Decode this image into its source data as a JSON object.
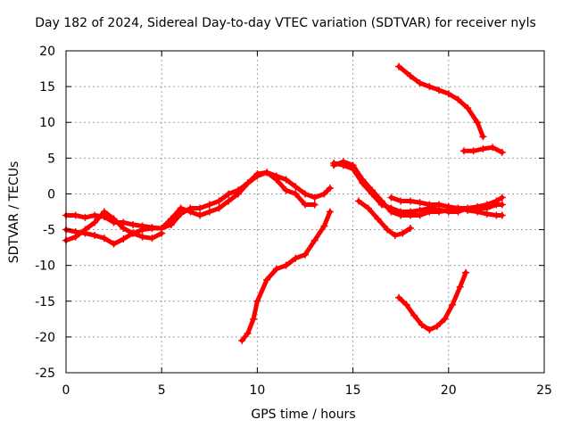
{
  "chart_data": {
    "type": "line",
    "title": "Day 182 of 2024, Sidereal Day-to-day VTEC variation (SDTVAR) for receiver nyls",
    "xlabel": "GPS time / hours",
    "ylabel": "SDTVAR / TECUs",
    "xlim": [
      0,
      25
    ],
    "ylim": [
      -25,
      20
    ],
    "xticks": [
      0,
      5,
      10,
      15,
      20,
      25
    ],
    "yticks": [
      -25,
      -20,
      -15,
      -10,
      -5,
      0,
      5,
      10,
      15,
      20
    ],
    "grid": true,
    "color": "#ff0000",
    "series": [
      {
        "points": [
          [
            0.0,
            -3.0
          ],
          [
            0.5,
            -3.0
          ],
          [
            1.0,
            -3.3
          ],
          [
            1.5,
            -3.0
          ],
          [
            2.0,
            -3.2
          ],
          [
            2.5,
            -4.0
          ],
          [
            3.0,
            -4.0
          ],
          [
            3.5,
            -4.3
          ],
          [
            4.0,
            -4.5
          ],
          [
            4.5,
            -4.7
          ],
          [
            5.0,
            -4.8
          ],
          [
            5.5,
            -4.3
          ],
          [
            6.0,
            -2.8
          ],
          [
            6.5,
            -2.0
          ],
          [
            7.0,
            -2.0
          ],
          [
            7.5,
            -1.5
          ],
          [
            8.0,
            -1.0
          ],
          [
            8.5,
            0.0
          ],
          [
            9.0,
            0.5
          ],
          [
            9.5,
            1.5
          ],
          [
            10.0,
            2.5
          ],
          [
            10.5,
            3.0
          ],
          [
            11.0,
            2.5
          ],
          [
            11.5,
            2.0
          ],
          [
            12.0,
            1.0
          ],
          [
            12.5,
            0.0
          ],
          [
            13.0,
            -0.5
          ],
          [
            13.5,
            0.0
          ],
          [
            13.8,
            0.8
          ]
        ]
      },
      {
        "points": [
          [
            0.0,
            -6.5
          ],
          [
            0.5,
            -6.0
          ],
          [
            1.0,
            -5.0
          ],
          [
            1.5,
            -4.0
          ],
          [
            2.0,
            -2.5
          ],
          [
            2.5,
            -3.5
          ],
          [
            3.0,
            -4.8
          ],
          [
            3.5,
            -5.5
          ],
          [
            4.0,
            -6.0
          ],
          [
            4.5,
            -6.2
          ],
          [
            5.0,
            -5.5
          ]
        ]
      },
      {
        "points": [
          [
            0.0,
            -5.0
          ],
          [
            0.5,
            -5.3
          ],
          [
            1.0,
            -5.5
          ],
          [
            1.5,
            -5.8
          ],
          [
            2.0,
            -6.2
          ],
          [
            2.5,
            -7.0
          ],
          [
            3.0,
            -6.3
          ],
          [
            3.5,
            -5.5
          ],
          [
            4.0,
            -5.0
          ],
          [
            4.5,
            -4.8
          ],
          [
            5.0,
            -4.8
          ]
        ]
      },
      {
        "points": [
          [
            5.0,
            -4.8
          ],
          [
            5.5,
            -3.5
          ],
          [
            6.0,
            -2.0
          ],
          [
            6.5,
            -2.5
          ],
          [
            7.0,
            -3.0
          ],
          [
            7.5,
            -2.5
          ],
          [
            8.0,
            -2.0
          ],
          [
            8.5,
            -1.0
          ],
          [
            9.0,
            0.0
          ],
          [
            9.5,
            1.5
          ],
          [
            10.0,
            2.8
          ],
          [
            10.5,
            3.0
          ],
          [
            11.0,
            2.0
          ],
          [
            11.5,
            0.5
          ],
          [
            12.0,
            0.0
          ],
          [
            12.5,
            -1.5
          ],
          [
            13.0,
            -1.5
          ]
        ]
      },
      {
        "points": [
          [
            9.2,
            -20.5
          ],
          [
            9.5,
            -19.5
          ],
          [
            9.8,
            -17.5
          ],
          [
            10.0,
            -15.0
          ],
          [
            10.5,
            -12.0
          ],
          [
            11.0,
            -10.5
          ],
          [
            11.5,
            -10.0
          ],
          [
            12.0,
            -9.0
          ],
          [
            12.5,
            -8.5
          ],
          [
            13.0,
            -6.5
          ],
          [
            13.5,
            -4.5
          ],
          [
            13.8,
            -2.5
          ]
        ]
      },
      {
        "points": [
          [
            14.0,
            4.0
          ],
          [
            14.5,
            4.5
          ],
          [
            15.0,
            4.0
          ],
          [
            15.5,
            2.0
          ],
          [
            16.0,
            0.5
          ],
          [
            16.5,
            -1.0
          ],
          [
            17.0,
            -2.5
          ],
          [
            17.5,
            -3.0
          ],
          [
            18.0,
            -3.0
          ],
          [
            18.5,
            -3.0
          ],
          [
            19.0,
            -2.5
          ],
          [
            19.5,
            -2.5
          ],
          [
            20.0,
            -2.3
          ],
          [
            20.5,
            -2.0
          ],
          [
            21.0,
            -2.0
          ],
          [
            21.5,
            -2.0
          ],
          [
            22.0,
            -2.0
          ],
          [
            22.5,
            -1.5
          ],
          [
            22.8,
            -1.5
          ]
        ]
      },
      {
        "points": [
          [
            14.0,
            4.3
          ],
          [
            14.5,
            4.0
          ],
          [
            15.0,
            3.5
          ],
          [
            15.5,
            1.5
          ],
          [
            16.0,
            0.0
          ],
          [
            16.5,
            -1.5
          ],
          [
            17.0,
            -2.0
          ],
          [
            17.5,
            -2.5
          ],
          [
            18.0,
            -2.5
          ],
          [
            18.5,
            -2.3
          ],
          [
            19.0,
            -2.0
          ],
          [
            19.5,
            -2.2
          ],
          [
            20.0,
            -2.5
          ],
          [
            20.5,
            -2.5
          ],
          [
            21.0,
            -2.0
          ],
          [
            21.5,
            -1.8
          ],
          [
            22.0,
            -1.5
          ],
          [
            22.5,
            -1.0
          ],
          [
            22.8,
            -0.5
          ]
        ]
      },
      {
        "points": [
          [
            17.0,
            -0.5
          ],
          [
            17.5,
            -1.0
          ],
          [
            18.0,
            -1.0
          ],
          [
            18.5,
            -1.2
          ],
          [
            19.0,
            -1.5
          ],
          [
            19.5,
            -1.5
          ],
          [
            20.0,
            -1.8
          ],
          [
            20.5,
            -2.0
          ],
          [
            21.0,
            -2.3
          ],
          [
            21.5,
            -2.5
          ],
          [
            22.0,
            -2.8
          ],
          [
            22.5,
            -3.0
          ],
          [
            22.8,
            -3.0
          ]
        ]
      },
      {
        "points": [
          [
            15.3,
            -1.0
          ],
          [
            15.8,
            -2.0
          ],
          [
            16.3,
            -3.5
          ],
          [
            16.8,
            -5.0
          ],
          [
            17.2,
            -5.8
          ],
          [
            17.6,
            -5.5
          ],
          [
            18.0,
            -4.8
          ]
        ]
      },
      {
        "points": [
          [
            17.4,
            17.8
          ],
          [
            18.0,
            16.5
          ],
          [
            18.5,
            15.5
          ],
          [
            19.0,
            15.0
          ],
          [
            19.5,
            14.5
          ],
          [
            20.0,
            14.0
          ],
          [
            20.5,
            13.2
          ],
          [
            21.0,
            12.0
          ],
          [
            21.5,
            10.0
          ],
          [
            21.8,
            8.0
          ]
        ]
      },
      {
        "points": [
          [
            20.8,
            6.0
          ],
          [
            21.3,
            6.0
          ],
          [
            21.8,
            6.3
          ],
          [
            22.3,
            6.5
          ],
          [
            22.8,
            5.8
          ]
        ]
      },
      {
        "points": [
          [
            17.4,
            -14.5
          ],
          [
            17.8,
            -15.5
          ],
          [
            18.2,
            -17.0
          ],
          [
            18.6,
            -18.3
          ],
          [
            19.0,
            -19.0
          ],
          [
            19.4,
            -18.5
          ],
          [
            19.8,
            -17.5
          ],
          [
            20.2,
            -15.5
          ],
          [
            20.6,
            -13.0
          ],
          [
            20.9,
            -11.0
          ]
        ]
      }
    ]
  }
}
